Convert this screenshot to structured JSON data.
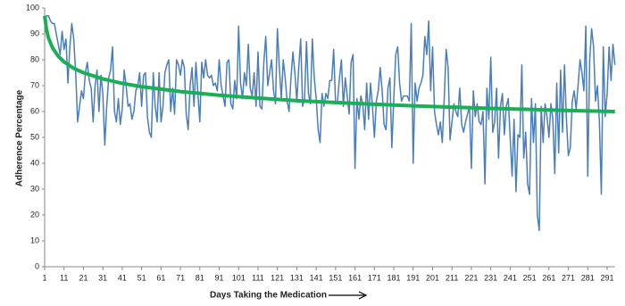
{
  "chart_data": {
    "type": "line",
    "x_label": "Days Taking the Medication",
    "y_label": "Adherence  Percentage",
    "xlim": [
      1,
      295
    ],
    "ylim": [
      0,
      100
    ],
    "xticks": [
      1,
      11,
      21,
      31,
      41,
      51,
      61,
      71,
      81,
      91,
      101,
      111,
      121,
      131,
      141,
      151,
      161,
      171,
      181,
      191,
      201,
      211,
      221,
      231,
      241,
      251,
      261,
      271,
      281,
      291
    ],
    "yticks": [
      0,
      10,
      20,
      30,
      40,
      50,
      60,
      70,
      80,
      90,
      100
    ],
    "grid": false,
    "series": [
      {
        "color": "#4a7ebb",
        "width": 1.5,
        "x": [
          1,
          2,
          3,
          4,
          5,
          6,
          7,
          8,
          9,
          10,
          11,
          12,
          13,
          14,
          15,
          16,
          17,
          18,
          19,
          20,
          21,
          22,
          23,
          24,
          25,
          26,
          27,
          28,
          29,
          30,
          31,
          32,
          33,
          34,
          35,
          36,
          37,
          38,
          39,
          40,
          41,
          42,
          43,
          44,
          45,
          46,
          47,
          48,
          49,
          50,
          51,
          52,
          53,
          54,
          55,
          56,
          57,
          58,
          59,
          60,
          61,
          62,
          63,
          64,
          65,
          66,
          67,
          68,
          69,
          70,
          71,
          72,
          73,
          74,
          75,
          76,
          77,
          78,
          79,
          80,
          81,
          82,
          83,
          84,
          85,
          86,
          87,
          88,
          89,
          90,
          91,
          92,
          93,
          94,
          95,
          96,
          97,
          98,
          99,
          100,
          101,
          102,
          103,
          104,
          105,
          106,
          107,
          108,
          109,
          110,
          111,
          112,
          113,
          114,
          115,
          116,
          117,
          118,
          119,
          120,
          121,
          122,
          123,
          124,
          125,
          126,
          127,
          128,
          129,
          130,
          131,
          132,
          133,
          134,
          135,
          136,
          137,
          138,
          139,
          140,
          141,
          142,
          143,
          144,
          145,
          146,
          147,
          148,
          149,
          150,
          151,
          152,
          153,
          154,
          155,
          156,
          157,
          158,
          159,
          160,
          161,
          162,
          163,
          164,
          165,
          166,
          167,
          168,
          169,
          170,
          171,
          172,
          173,
          174,
          175,
          176,
          177,
          178,
          179,
          180,
          181,
          182,
          183,
          184,
          185,
          186,
          187,
          188,
          189,
          190,
          191,
          192,
          193,
          194,
          195,
          196,
          197,
          198,
          199,
          200,
          201,
          202,
          203,
          204,
          205,
          206,
          207,
          208,
          209,
          210,
          211,
          212,
          213,
          214,
          215,
          216,
          217,
          218,
          219,
          220,
          221,
          222,
          223,
          224,
          225,
          226,
          227,
          228,
          229,
          230,
          231,
          232,
          233,
          234,
          235,
          236,
          237,
          238,
          239,
          240,
          241,
          242,
          243,
          244,
          245,
          246,
          247,
          248,
          249,
          250,
          251,
          252,
          253,
          254,
          255,
          256,
          257,
          258,
          259,
          260,
          261,
          262,
          263,
          264,
          265,
          266,
          267,
          268,
          269,
          270,
          271,
          272,
          273,
          274,
          275,
          276,
          277,
          278,
          279,
          280,
          281,
          282,
          283,
          284,
          285,
          286,
          287,
          288,
          289,
          290,
          291,
          292,
          293,
          294,
          295
        ],
        "values": [
          95,
          97,
          97,
          95,
          94,
          94,
          90,
          86,
          82,
          91,
          84,
          88,
          71,
          85,
          94,
          88,
          75,
          56,
          62,
          68,
          65,
          75,
          79,
          72,
          69,
          56,
          70,
          76,
          60,
          74,
          67,
          47,
          62,
          73,
          76,
          85,
          60,
          56,
          65,
          55,
          61,
          76,
          70,
          62,
          63,
          57,
          60,
          68,
          70,
          75,
          62,
          74,
          75,
          58,
          52,
          50,
          75,
          62,
          56,
          75,
          56,
          62,
          75,
          78,
          80,
          60,
          69,
          59,
          80,
          78,
          74,
          80,
          77,
          59,
          53,
          70,
          77,
          62,
          79,
          67,
          56,
          79,
          73,
          80,
          74,
          73,
          74,
          70,
          71,
          68,
          80,
          70,
          66,
          62,
          79,
          80,
          63,
          61,
          72,
          65,
          93,
          71,
          65,
          75,
          70,
          86,
          69,
          66,
          75,
          62,
          83,
          62,
          61,
          79,
          89,
          70,
          75,
          80,
          68,
          63,
          92,
          77,
          65,
          80,
          73,
          64,
          60,
          73,
          83,
          75,
          64,
          77,
          88,
          62,
          65,
          87,
          67,
          63,
          88,
          73,
          65,
          53,
          48,
          67,
          62,
          67,
          65,
          72,
          72,
          84,
          63,
          64,
          73,
          80,
          62,
          73,
          66,
          59,
          79,
          82,
          38,
          65,
          57,
          66,
          63,
          53,
          71,
          57,
          71,
          62,
          50,
          64,
          68,
          77,
          68,
          55,
          53,
          69,
          73,
          46,
          65,
          82,
          85,
          71,
          64,
          66,
          66,
          66,
          64,
          94,
          40,
          71,
          64,
          69,
          71,
          74,
          89,
          82,
          95,
          68,
          85,
          60,
          55,
          51,
          56,
          48,
          65,
          84,
          77,
          49,
          56,
          63,
          60,
          58,
          69,
          55,
          52,
          56,
          59,
          62,
          38,
          68,
          58,
          63,
          56,
          55,
          60,
          32,
          69,
          57,
          81,
          52,
          56,
          69,
          42,
          62,
          67,
          51,
          62,
          65,
          50,
          35,
          57,
          29,
          51,
          50,
          78,
          42,
          52,
          32,
          28,
          65,
          48,
          63,
          20,
          14,
          62,
          48,
          63,
          58,
          50,
          63,
          57,
          36,
          71,
          44,
          76,
          52,
          78,
          57,
          43,
          46,
          64,
          68,
          61,
          70,
          80,
          75,
          68,
          93,
          35,
          80,
          92,
          85,
          64,
          70,
          56,
          28,
          85,
          58,
          67,
          85,
          72,
          86,
          78
        ]
      },
      {
        "color": "#1aaf54",
        "width": 4,
        "x": [
          1,
          2,
          3,
          5,
          8,
          11,
          16,
          21,
          31,
          41,
          51,
          71,
          91,
          111,
          131,
          151,
          171,
          191,
          211,
          231,
          251,
          271,
          295
        ],
        "values": [
          97,
          91.5,
          88.4,
          84.7,
          81.4,
          79.2,
          76.7,
          75.0,
          72.6,
          70.9,
          69.6,
          67.7,
          66.3,
          65.2,
          64.2,
          63.5,
          62.8,
          62.2,
          61.7,
          61.2,
          60.8,
          60.4,
          60.0
        ]
      }
    ]
  }
}
